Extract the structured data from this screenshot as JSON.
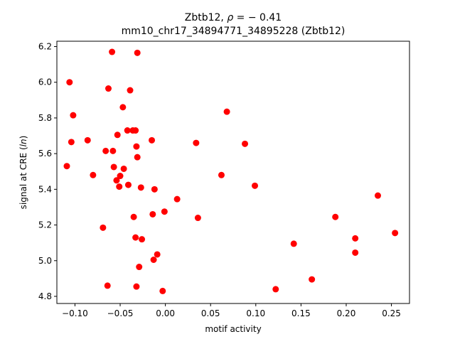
{
  "chart_data": {
    "type": "scatter",
    "title_line1_prefix": "Zbtb12, ",
    "title_rho_symbol": "ρ",
    "title_rho_value": " = − 0.41",
    "title_line2": "mm10_chr17_34894771_34895228 (Zbtb12)",
    "xlabel": "motif activity",
    "ylabel_prefix": "signal at CRE (",
    "ylabel_italic": "ln",
    "ylabel_suffix": ")",
    "xlim": [
      -0.12,
      0.27
    ],
    "ylim": [
      4.76,
      6.23
    ],
    "x_ticks": [
      -0.1,
      -0.05,
      0.0,
      0.05,
      0.1,
      0.15,
      0.2,
      0.25
    ],
    "x_tick_labels": [
      "−0.10",
      "−0.05",
      "0.00",
      "0.05",
      "0.10",
      "0.15",
      "0.20",
      "0.25"
    ],
    "y_ticks": [
      4.8,
      5.0,
      5.2,
      5.4,
      5.6,
      5.8,
      6.0,
      6.2
    ],
    "y_tick_labels": [
      "4.8",
      "5.0",
      "5.2",
      "5.4",
      "5.6",
      "5.8",
      "6.0",
      "6.2"
    ],
    "grid": false,
    "marker_color": "#ff0000",
    "points": [
      {
        "x": -0.059,
        "y": 6.17
      },
      {
        "x": -0.031,
        "y": 6.165
      },
      {
        "x": -0.106,
        "y": 6.0
      },
      {
        "x": -0.063,
        "y": 5.965
      },
      {
        "x": -0.039,
        "y": 5.955
      },
      {
        "x": -0.047,
        "y": 5.86
      },
      {
        "x": -0.102,
        "y": 5.815
      },
      {
        "x": 0.068,
        "y": 5.835
      },
      {
        "x": -0.042,
        "y": 5.73
      },
      {
        "x": -0.036,
        "y": 5.73
      },
      {
        "x": -0.033,
        "y": 5.73
      },
      {
        "x": -0.053,
        "y": 5.705
      },
      {
        "x": -0.104,
        "y": 5.665
      },
      {
        "x": -0.086,
        "y": 5.675
      },
      {
        "x": -0.015,
        "y": 5.675
      },
      {
        "x": 0.034,
        "y": 5.66
      },
      {
        "x": 0.088,
        "y": 5.655
      },
      {
        "x": -0.032,
        "y": 5.64
      },
      {
        "x": -0.066,
        "y": 5.615
      },
      {
        "x": -0.058,
        "y": 5.615
      },
      {
        "x": -0.031,
        "y": 5.58
      },
      {
        "x": -0.109,
        "y": 5.53
      },
      {
        "x": -0.057,
        "y": 5.525
      },
      {
        "x": -0.046,
        "y": 5.515
      },
      {
        "x": -0.08,
        "y": 5.48
      },
      {
        "x": -0.05,
        "y": 5.475
      },
      {
        "x": 0.062,
        "y": 5.48
      },
      {
        "x": -0.054,
        "y": 5.45
      },
      {
        "x": -0.041,
        "y": 5.425
      },
      {
        "x": -0.051,
        "y": 5.415
      },
      {
        "x": -0.027,
        "y": 5.41
      },
      {
        "x": -0.012,
        "y": 5.4
      },
      {
        "x": 0.099,
        "y": 5.42
      },
      {
        "x": 0.013,
        "y": 5.345
      },
      {
        "x": 0.235,
        "y": 5.365
      },
      {
        "x": -0.001,
        "y": 5.275
      },
      {
        "x": -0.014,
        "y": 5.26
      },
      {
        "x": -0.035,
        "y": 5.245
      },
      {
        "x": 0.036,
        "y": 5.24
      },
      {
        "x": 0.188,
        "y": 5.245
      },
      {
        "x": -0.069,
        "y": 5.185
      },
      {
        "x": 0.254,
        "y": 5.155
      },
      {
        "x": -0.033,
        "y": 5.13
      },
      {
        "x": -0.026,
        "y": 5.12
      },
      {
        "x": 0.21,
        "y": 5.125
      },
      {
        "x": 0.142,
        "y": 5.095
      },
      {
        "x": 0.21,
        "y": 5.045
      },
      {
        "x": -0.009,
        "y": 5.035
      },
      {
        "x": -0.013,
        "y": 5.005
      },
      {
        "x": -0.029,
        "y": 4.965
      },
      {
        "x": 0.162,
        "y": 4.895
      },
      {
        "x": -0.064,
        "y": 4.86
      },
      {
        "x": -0.032,
        "y": 4.855
      },
      {
        "x": 0.122,
        "y": 4.84
      },
      {
        "x": -0.003,
        "y": 4.83
      }
    ]
  }
}
